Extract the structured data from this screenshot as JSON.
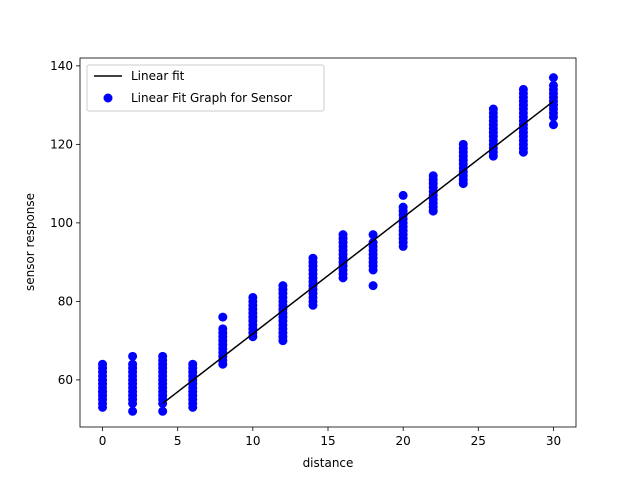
{
  "chart_data": {
    "type": "scatter",
    "title": "",
    "xlabel": "distance",
    "ylabel": "sensor response",
    "xlim": [
      -1.5,
      31.5
    ],
    "ylim": [
      48,
      142
    ],
    "x_ticks": [
      0,
      5,
      10,
      15,
      20,
      25,
      30
    ],
    "y_ticks": [
      60,
      80,
      100,
      120,
      140
    ],
    "grid": false,
    "legend_position": "upper-left",
    "legend_labels": [
      "Linear fit",
      "Linear Fit Graph for Sensor"
    ],
    "line_color": "#000000",
    "marker_color": "#0000ff",
    "fit_line": {
      "x": [
        4,
        30
      ],
      "y": [
        54,
        131
      ]
    },
    "groups": [
      {
        "x": 0,
        "values": [
          53,
          54,
          55,
          56,
          57,
          57,
          58,
          59,
          60,
          61,
          62,
          63,
          64
        ]
      },
      {
        "x": 2,
        "values": [
          52,
          54,
          55,
          56,
          57,
          58,
          59,
          60,
          61,
          62,
          63,
          64,
          66
        ]
      },
      {
        "x": 4,
        "values": [
          52,
          54,
          55,
          56,
          57,
          58,
          59,
          60,
          61,
          62,
          63,
          64,
          65,
          66
        ]
      },
      {
        "x": 6,
        "values": [
          53,
          54,
          55,
          56,
          57,
          58,
          59,
          60,
          61,
          62,
          63,
          64
        ]
      },
      {
        "x": 8,
        "values": [
          64,
          65,
          66,
          67,
          68,
          69,
          70,
          71,
          72,
          73,
          76
        ]
      },
      {
        "x": 10,
        "values": [
          71,
          72,
          73,
          74,
          75,
          76,
          77,
          78,
          79,
          80,
          81
        ]
      },
      {
        "x": 12,
        "values": [
          70,
          71,
          72,
          73,
          74,
          75,
          76,
          77,
          78,
          79,
          80,
          81,
          82,
          83,
          84
        ]
      },
      {
        "x": 14,
        "values": [
          79,
          80,
          81,
          82,
          83,
          84,
          85,
          86,
          87,
          88,
          89,
          90,
          91
        ]
      },
      {
        "x": 16,
        "values": [
          86,
          87,
          88,
          89,
          90,
          91,
          92,
          93,
          94,
          95,
          96,
          97
        ]
      },
      {
        "x": 18,
        "values": [
          84,
          88,
          89,
          90,
          91,
          92,
          93,
          94,
          95,
          97
        ]
      },
      {
        "x": 20,
        "values": [
          94,
          95,
          96,
          97,
          98,
          99,
          100,
          101,
          102,
          103,
          104,
          107
        ]
      },
      {
        "x": 22,
        "values": [
          103,
          104,
          105,
          106,
          107,
          108,
          109,
          110,
          111,
          112
        ]
      },
      {
        "x": 24,
        "values": [
          110,
          111,
          112,
          113,
          114,
          115,
          116,
          117,
          118,
          119,
          120
        ]
      },
      {
        "x": 26,
        "values": [
          117,
          118,
          119,
          120,
          121,
          122,
          123,
          124,
          125,
          126,
          127,
          128,
          129
        ]
      },
      {
        "x": 28,
        "values": [
          118,
          119,
          120,
          121,
          122,
          123,
          124,
          125,
          126,
          127,
          128,
          129,
          130,
          131,
          132,
          133,
          134
        ]
      },
      {
        "x": 30,
        "values": [
          125,
          127,
          128,
          129,
          130,
          131,
          132,
          133,
          134,
          135,
          137
        ]
      }
    ]
  }
}
